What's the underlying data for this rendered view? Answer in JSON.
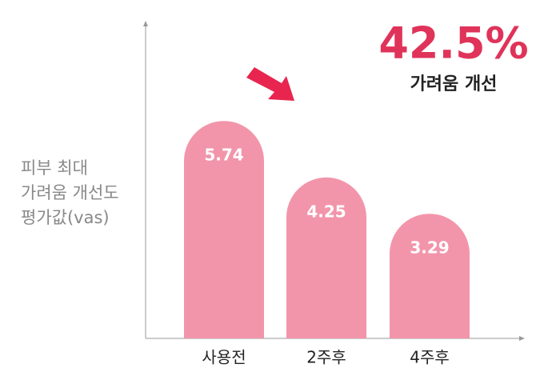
{
  "chart_data": {
    "type": "bar",
    "ylabel": [
      "피부 최대",
      "가려움 개선도",
      "평가값(vas)"
    ],
    "categories": [
      "사용전",
      "2주후",
      "4주후"
    ],
    "values": [
      5.74,
      4.25,
      3.29
    ],
    "color": "#f295ab",
    "ylim": [
      0,
      8.3
    ],
    "annotation": {
      "value": "42.5%",
      "label": "가려움 개선"
    }
  }
}
